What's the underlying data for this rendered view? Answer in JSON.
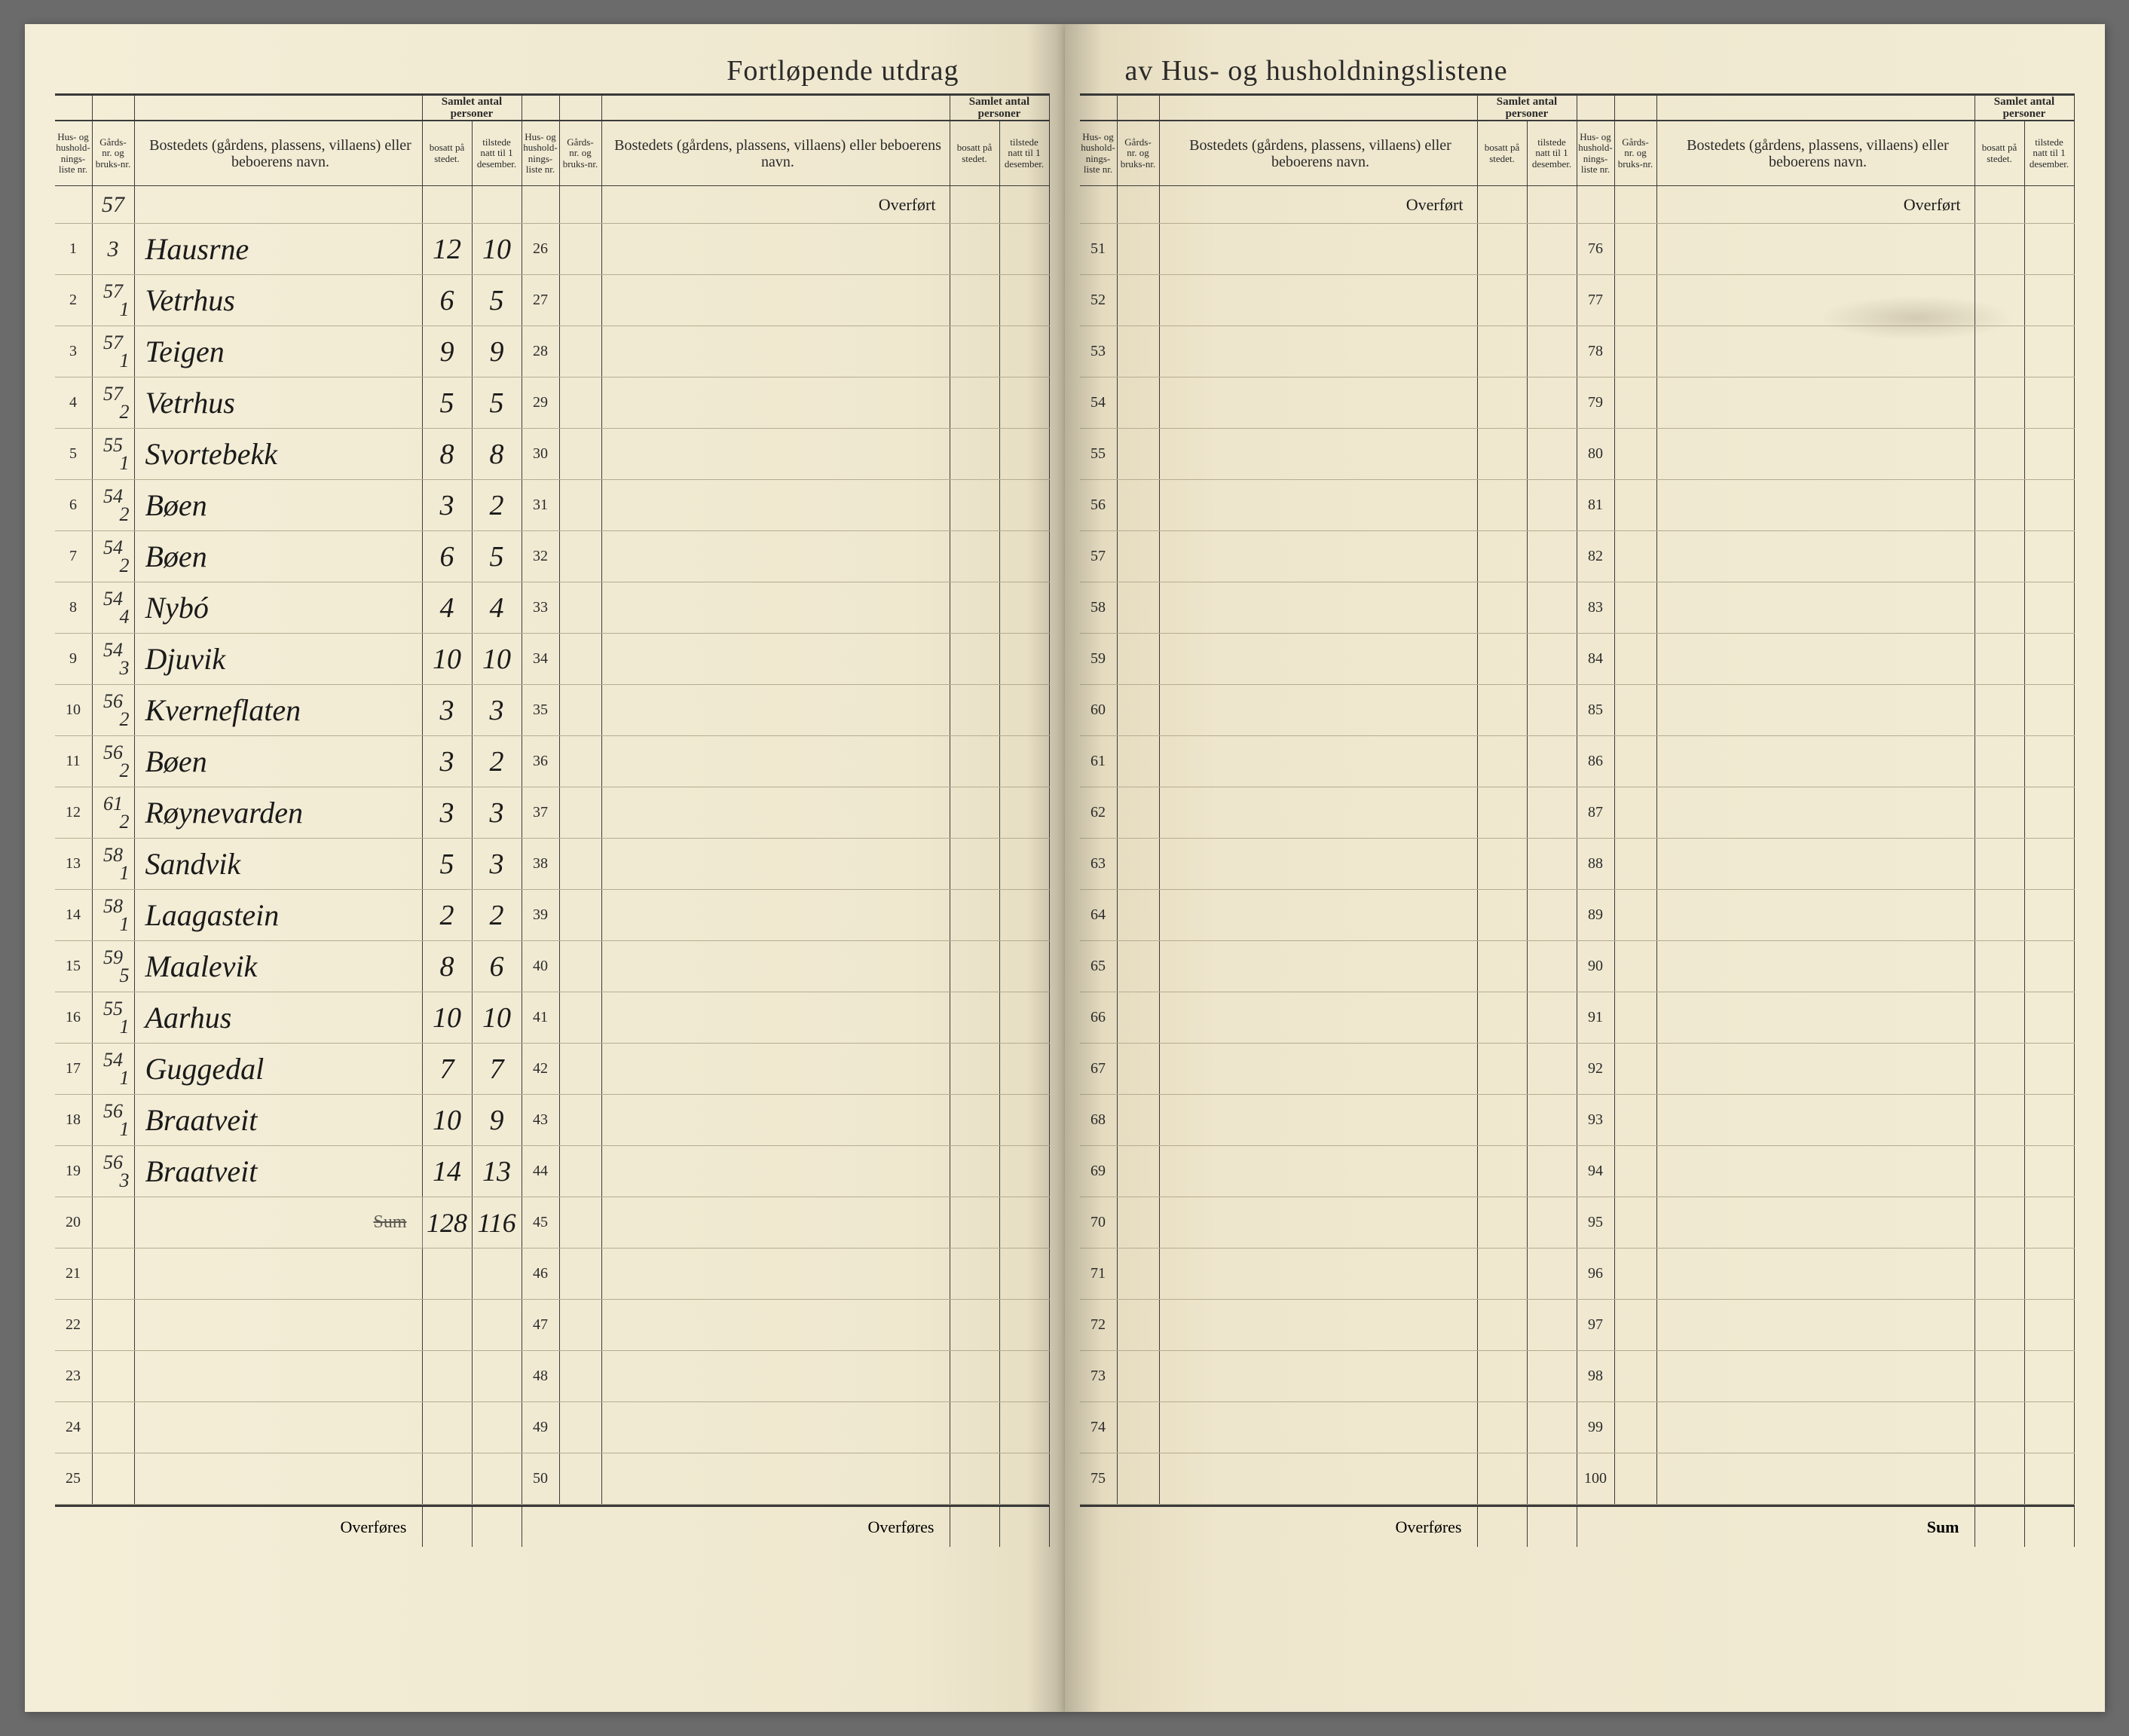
{
  "document": {
    "title_left": "Fortløpende utdrag",
    "title_right": "av Hus- og husholdningslistene",
    "headers": {
      "liste": "Hus- og hushold-nings-liste nr.",
      "gard": "Gårds-nr. og bruks-nr.",
      "bosted": "Bostedets (gårdens, plassens, villaens) eller beboerens navn.",
      "samlet": "Samlet antal personer",
      "bosatt": "bosatt på stedet.",
      "tilstede": "tilstede natt til 1 desember."
    },
    "transfer_top": "Overført",
    "transfer_bottom": "Overføres",
    "sum_label": "Sum",
    "left_page": {
      "section1": {
        "gard_pre": "57",
        "rows": [
          {
            "n": "1",
            "g": "3",
            "name": "Hausrne",
            "b": "12",
            "t": "10"
          },
          {
            "n": "2",
            "g": "57/1",
            "name": "Vetrhus",
            "b": "6",
            "t": "5"
          },
          {
            "n": "3",
            "g": "57/1",
            "name": "Teigen",
            "b": "9",
            "t": "9"
          },
          {
            "n": "4",
            "g": "57/2",
            "name": "Vetrhus",
            "b": "5",
            "t": "5"
          },
          {
            "n": "5",
            "g": "55/1",
            "name": "Svortebekk",
            "b": "8",
            "t": "8"
          },
          {
            "n": "6",
            "g": "54/2",
            "name": "Bøen",
            "b": "3",
            "t": "2"
          },
          {
            "n": "7",
            "g": "54/2",
            "name": "Bøen",
            "b": "6",
            "t": "5"
          },
          {
            "n": "8",
            "g": "54/4",
            "name": "Nybó",
            "b": "4",
            "t": "4"
          },
          {
            "n": "9",
            "g": "54/3",
            "name": "Djuvik",
            "b": "10",
            "t": "10"
          },
          {
            "n": "10",
            "g": "56/2",
            "name": "Kverneflaten",
            "b": "3",
            "t": "3"
          },
          {
            "n": "11",
            "g": "56/2",
            "name": "Bøen",
            "b": "3",
            "t": "2"
          },
          {
            "n": "12",
            "g": "61/2",
            "name": "Røynevarden",
            "b": "3",
            "t": "3"
          },
          {
            "n": "13",
            "g": "58/1",
            "name": "Sandvik",
            "b": "5",
            "t": "3"
          },
          {
            "n": "14",
            "g": "58/1",
            "name": "Laagastein",
            "b": "2",
            "t": "2"
          },
          {
            "n": "15",
            "g": "59/5",
            "name": "Maalevik",
            "b": "8",
            "t": "6"
          },
          {
            "n": "16",
            "g": "55/1",
            "name": "Aarhus",
            "b": "10",
            "t": "10"
          },
          {
            "n": "17",
            "g": "54/1",
            "name": "Guggedal",
            "b": "7",
            "t": "7"
          },
          {
            "n": "18",
            "g": "56/1",
            "name": "Braatveit",
            "b": "10",
            "t": "9"
          },
          {
            "n": "19",
            "g": "56/3",
            "name": "Braatveit",
            "b": "14",
            "t": "13"
          },
          {
            "n": "20",
            "g": "",
            "name": "Sum",
            "b": "128",
            "t": "116",
            "sum": true
          },
          {
            "n": "21",
            "g": "",
            "name": "",
            "b": "",
            "t": ""
          },
          {
            "n": "22",
            "g": "",
            "name": "",
            "b": "",
            "t": ""
          },
          {
            "n": "23",
            "g": "",
            "name": "",
            "b": "",
            "t": ""
          },
          {
            "n": "24",
            "g": "",
            "name": "",
            "b": "",
            "t": ""
          },
          {
            "n": "25",
            "g": "",
            "name": "",
            "b": "",
            "t": ""
          }
        ]
      },
      "section2": {
        "rows": [
          {
            "n": "26"
          },
          {
            "n": "27"
          },
          {
            "n": "28"
          },
          {
            "n": "29"
          },
          {
            "n": "30"
          },
          {
            "n": "31"
          },
          {
            "n": "32"
          },
          {
            "n": "33"
          },
          {
            "n": "34"
          },
          {
            "n": "35"
          },
          {
            "n": "36"
          },
          {
            "n": "37"
          },
          {
            "n": "38"
          },
          {
            "n": "39"
          },
          {
            "n": "40"
          },
          {
            "n": "41"
          },
          {
            "n": "42"
          },
          {
            "n": "43"
          },
          {
            "n": "44"
          },
          {
            "n": "45"
          },
          {
            "n": "46"
          },
          {
            "n": "47"
          },
          {
            "n": "48"
          },
          {
            "n": "49"
          },
          {
            "n": "50"
          }
        ]
      }
    },
    "right_page": {
      "section1": {
        "rows": [
          {
            "n": "51"
          },
          {
            "n": "52"
          },
          {
            "n": "53"
          },
          {
            "n": "54"
          },
          {
            "n": "55"
          },
          {
            "n": "56"
          },
          {
            "n": "57"
          },
          {
            "n": "58"
          },
          {
            "n": "59"
          },
          {
            "n": "60"
          },
          {
            "n": "61"
          },
          {
            "n": "62"
          },
          {
            "n": "63"
          },
          {
            "n": "64"
          },
          {
            "n": "65"
          },
          {
            "n": "66"
          },
          {
            "n": "67"
          },
          {
            "n": "68"
          },
          {
            "n": "69"
          },
          {
            "n": "70"
          },
          {
            "n": "71"
          },
          {
            "n": "72"
          },
          {
            "n": "73"
          },
          {
            "n": "74"
          },
          {
            "n": "75"
          }
        ]
      },
      "section2": {
        "rows": [
          {
            "n": "76"
          },
          {
            "n": "77"
          },
          {
            "n": "78"
          },
          {
            "n": "79"
          },
          {
            "n": "80"
          },
          {
            "n": "81"
          },
          {
            "n": "82"
          },
          {
            "n": "83"
          },
          {
            "n": "84"
          },
          {
            "n": "85"
          },
          {
            "n": "86"
          },
          {
            "n": "87"
          },
          {
            "n": "88"
          },
          {
            "n": "89"
          },
          {
            "n": "90"
          },
          {
            "n": "91"
          },
          {
            "n": "92"
          },
          {
            "n": "93"
          },
          {
            "n": "94"
          },
          {
            "n": "95"
          },
          {
            "n": "96"
          },
          {
            "n": "97"
          },
          {
            "n": "98"
          },
          {
            "n": "99"
          },
          {
            "n": "100"
          }
        ]
      }
    }
  },
  "colors": {
    "paper": "#f2ecd5",
    "ink": "#2a2a2a",
    "handwriting": "#1a1a1a",
    "rule_dark": "#3a3a3a",
    "rule_light": "#b5ac92"
  }
}
